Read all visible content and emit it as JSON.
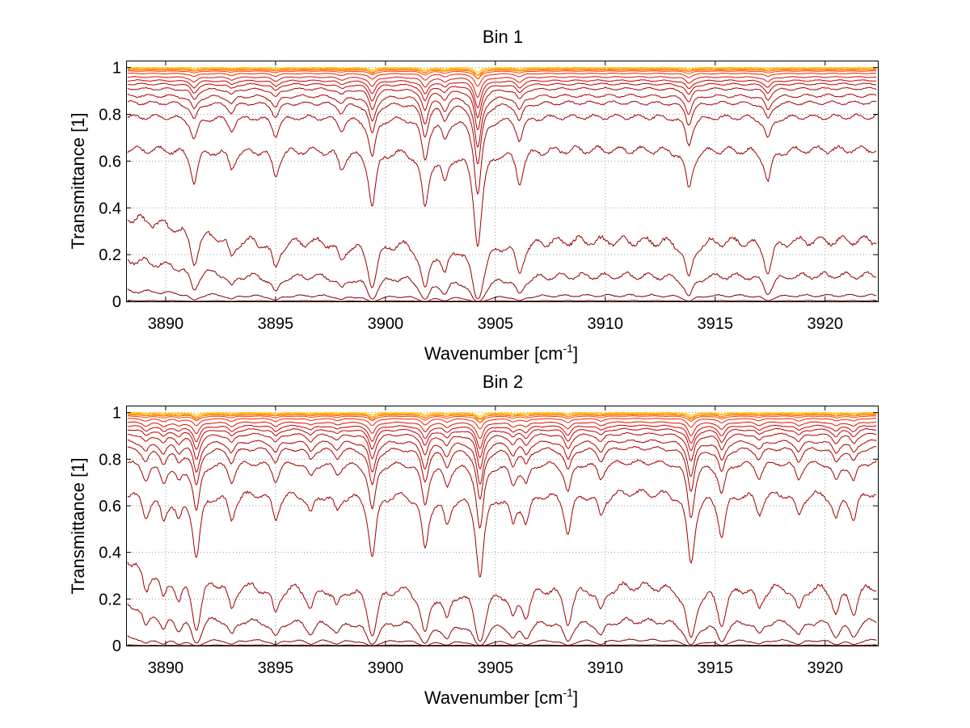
{
  "figure": {
    "background": "#ffffff"
  },
  "chart_data": [
    {
      "type": "line",
      "title": "Bin 1",
      "xlabel": "Wavenumber [cm",
      "xlabel_sup": "-1",
      "xlabel_tail": "]",
      "ylabel": "Transmittance [1]",
      "xlim": [
        3888.2,
        3922.4
      ],
      "ylim": [
        0,
        1.03
      ],
      "xticks": [
        3890,
        3895,
        3900,
        3905,
        3910,
        3915,
        3920
      ],
      "yticks": [
        0,
        0.2,
        0.4,
        0.6,
        0.8,
        1
      ],
      "ytick_labels": [
        "0",
        "0.2",
        "0.4",
        "0.6",
        "0.8",
        "1"
      ],
      "grid": true,
      "absorption_lines": [
        {
          "x": 3891.3,
          "depth": 0.55
        },
        {
          "x": 3893.0,
          "depth": 0.3
        },
        {
          "x": 3895.0,
          "depth": 0.45
        },
        {
          "x": 3898.0,
          "depth": 0.3
        },
        {
          "x": 3899.4,
          "depth": 1.05
        },
        {
          "x": 3901.8,
          "depth": 1.1
        },
        {
          "x": 3902.7,
          "depth": 0.5
        },
        {
          "x": 3904.2,
          "depth": 2.3
        },
        {
          "x": 3906.1,
          "depth": 0.55
        },
        {
          "x": 3913.8,
          "depth": 0.7
        },
        {
          "x": 3917.4,
          "depth": 0.55
        }
      ],
      "series": [
        {
          "baseline": 1.0,
          "color": "#ffcc00"
        },
        {
          "baseline": 0.998,
          "color": "#ffaa00"
        },
        {
          "baseline": 0.995,
          "color": "#ff8800"
        },
        {
          "baseline": 0.99,
          "color": "#ff6600"
        },
        {
          "baseline": 0.985,
          "color": "#ff4400"
        },
        {
          "baseline": 0.975,
          "color": "#ee2200"
        },
        {
          "baseline": 0.96,
          "color": "#dd1100"
        },
        {
          "baseline": 0.945,
          "color": "#cc0000"
        },
        {
          "baseline": 0.93,
          "color": "#c00000"
        },
        {
          "baseline": 0.91,
          "color": "#b80000"
        },
        {
          "baseline": 0.88,
          "color": "#b00000"
        },
        {
          "baseline": 0.85,
          "color": "#a80000"
        },
        {
          "baseline": 0.79,
          "color": "#a00000"
        },
        {
          "baseline": 0.65,
          "color": "#a00000"
        },
        {
          "baseline": 0.26,
          "start_value": 0.36,
          "color": "#990000"
        },
        {
          "baseline": 0.11,
          "start_value": 0.18,
          "color": "#8b0000"
        },
        {
          "baseline": 0.025,
          "start_value": 0.045,
          "color": "#800000"
        },
        {
          "baseline": 0.003,
          "color": "#660000"
        }
      ]
    },
    {
      "type": "line",
      "title": "Bin 2",
      "xlabel": "Wavenumber [cm",
      "xlabel_sup": "-1",
      "xlabel_tail": "]",
      "ylabel": "Transmittance [1]",
      "xlim": [
        3888.2,
        3922.4
      ],
      "ylim": [
        0,
        1.03
      ],
      "xticks": [
        3890,
        3895,
        3900,
        3905,
        3910,
        3915,
        3920
      ],
      "yticks": [
        0,
        0.2,
        0.4,
        0.6,
        0.8,
        1
      ],
      "ytick_labels": [
        "0",
        "0.2",
        "0.4",
        "0.6",
        "0.8",
        "1"
      ],
      "grid": true,
      "absorption_lines": [
        {
          "x": 3889.1,
          "depth": 0.4
        },
        {
          "x": 3889.9,
          "depth": 0.45
        },
        {
          "x": 3890.6,
          "depth": 0.4
        },
        {
          "x": 3891.4,
          "depth": 1.3
        },
        {
          "x": 3893.0,
          "depth": 0.45
        },
        {
          "x": 3895.0,
          "depth": 0.45
        },
        {
          "x": 3896.6,
          "depth": 0.35
        },
        {
          "x": 3897.8,
          "depth": 0.3
        },
        {
          "x": 3899.4,
          "depth": 1.3
        },
        {
          "x": 3901.8,
          "depth": 1.1
        },
        {
          "x": 3902.8,
          "depth": 0.55
        },
        {
          "x": 3904.3,
          "depth": 1.9
        },
        {
          "x": 3905.8,
          "depth": 0.5
        },
        {
          "x": 3906.4,
          "depth": 0.5
        },
        {
          "x": 3908.3,
          "depth": 0.75
        },
        {
          "x": 3909.8,
          "depth": 0.4
        },
        {
          "x": 3913.9,
          "depth": 1.5
        },
        {
          "x": 3915.3,
          "depth": 0.8
        },
        {
          "x": 3917.0,
          "depth": 0.35
        },
        {
          "x": 3918.8,
          "depth": 0.4
        },
        {
          "x": 3920.5,
          "depth": 0.45
        },
        {
          "x": 3921.3,
          "depth": 0.45
        }
      ],
      "series": [
        {
          "baseline": 1.0,
          "color": "#ffcc00"
        },
        {
          "baseline": 0.998,
          "color": "#ffaa00"
        },
        {
          "baseline": 0.995,
          "color": "#ff8800"
        },
        {
          "baseline": 0.99,
          "color": "#ff6600"
        },
        {
          "baseline": 0.985,
          "color": "#ff4400"
        },
        {
          "baseline": 0.975,
          "color": "#ee2200"
        },
        {
          "baseline": 0.96,
          "color": "#dd1100"
        },
        {
          "baseline": 0.945,
          "color": "#cc0000"
        },
        {
          "baseline": 0.93,
          "color": "#c00000"
        },
        {
          "baseline": 0.91,
          "color": "#b80000"
        },
        {
          "baseline": 0.88,
          "color": "#b00000"
        },
        {
          "baseline": 0.85,
          "color": "#a80000"
        },
        {
          "baseline": 0.79,
          "color": "#a00000"
        },
        {
          "baseline": 0.66,
          "color": "#a00000"
        },
        {
          "baseline": 0.26,
          "start_value": 0.38,
          "color": "#990000"
        },
        {
          "baseline": 0.11,
          "start_value": 0.19,
          "color": "#8b0000"
        },
        {
          "baseline": 0.025,
          "start_value": 0.04,
          "color": "#800000"
        },
        {
          "baseline": 0.003,
          "color": "#660000"
        }
      ]
    }
  ]
}
